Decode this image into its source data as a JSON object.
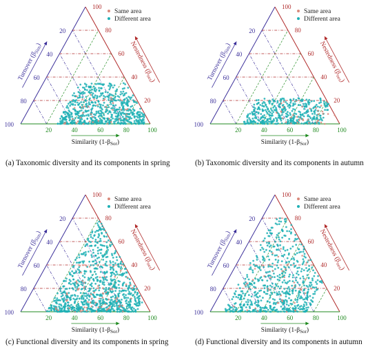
{
  "figure": {
    "sub_captions": [
      "(a) Taxonomic diversity and  its components in spring",
      "(b) Taxonomic diversity and  its components in autumn",
      "(c) Functional diversity and  its components in spring",
      "(d) Functional diversity and  its components in autumn"
    ]
  },
  "colors": {
    "same_area": "#d98a7c",
    "different_area": "#1fb0b5",
    "turnover_axis": "#3b2f9a",
    "nestedness_axis": "#b02a2a",
    "similarity_axis": "#1f8a1f"
  },
  "chart_data": [
    {
      "type": "scatter",
      "subtype": "ternary",
      "axes": {
        "turnover": {
          "label": "Turnover (βSim)",
          "label_main": "Turnover (β",
          "label_sub": "Sim",
          "label_end": ")",
          "ticks": [
            20,
            40,
            60,
            80,
            100
          ]
        },
        "nestedness": {
          "label": "Nestedness (βnes)",
          "label_main": "Nestedness (β",
          "label_sub": "nes",
          "label_end": ")",
          "ticks": [
            20,
            40,
            60,
            80,
            100
          ]
        },
        "similarity": {
          "label": "Similarity (1-βSor)",
          "label_main": "Similarity (1-β",
          "label_sub": "Sor",
          "label_end": ")",
          "ticks": [
            20,
            40,
            60,
            80,
            100
          ]
        }
      },
      "legend": {
        "position": "top-right",
        "entries": [
          "Same area",
          "Different area"
        ]
      },
      "grid": true,
      "distribution": {
        "different_area": {
          "count": 650,
          "similarity_range": [
            28,
            95
          ],
          "nestedness_range": [
            0,
            35
          ]
        },
        "same_area": {
          "count": 40,
          "similarity_range": [
            30,
            80
          ],
          "nestedness_range": [
            0,
            25
          ]
        }
      }
    },
    {
      "type": "scatter",
      "subtype": "ternary",
      "axes": {
        "turnover": {
          "label": "Turnover (βSim)",
          "label_main": "Turnover (β",
          "label_sub": "Sim",
          "label_end": ")",
          "ticks": [
            20,
            40,
            60,
            80,
            100
          ]
        },
        "nestedness": {
          "label": "Nestedness (βnes)",
          "label_main": "Nestedness (β",
          "label_sub": "nes",
          "label_end": ")",
          "ticks": [
            20,
            40,
            60,
            80,
            100
          ]
        },
        "similarity": {
          "label": "Similarity (1-βSor)",
          "label_main": "Similarity (1-β",
          "label_sub": "Sor",
          "label_end": ")",
          "ticks": [
            20,
            40,
            60,
            80,
            100
          ]
        }
      },
      "legend": {
        "position": "top-right",
        "entries": [
          "Same area",
          "Different area"
        ]
      },
      "grid": true,
      "distribution": {
        "different_area": {
          "count": 420,
          "similarity_range": [
            25,
            85
          ],
          "nestedness_range": [
            0,
            22
          ]
        },
        "same_area": {
          "count": 35,
          "similarity_range": [
            45,
            95
          ],
          "nestedness_range": [
            0,
            22
          ]
        }
      }
    },
    {
      "type": "scatter",
      "subtype": "ternary",
      "axes": {
        "turnover": {
          "label": "Turnover (βSim)",
          "label_main": "Turnover (β",
          "label_sub": "Sim",
          "label_end": ")",
          "ticks": [
            20,
            40,
            60,
            80,
            100
          ]
        },
        "nestedness": {
          "label": "Nestedness (βnes)",
          "label_main": "Nestedness (β",
          "label_sub": "nes",
          "label_end": ")",
          "ticks": [
            20,
            40,
            60,
            80,
            100
          ]
        },
        "similarity": {
          "label": "Similarity (1-βSor)",
          "label_main": "Similarity (1-β",
          "label_sub": "Sor",
          "label_end": ")",
          "ticks": [
            20,
            40,
            60,
            80,
            100
          ]
        }
      },
      "legend": {
        "position": "top-right",
        "entries": [
          "Same area",
          "Different area"
        ]
      },
      "grid": true,
      "distribution": {
        "different_area": {
          "count": 900,
          "similarity_range": [
            20,
            90
          ],
          "nestedness_range": [
            0,
            85
          ]
        },
        "same_area": {
          "count": 70,
          "similarity_range": [
            25,
            80
          ],
          "nestedness_range": [
            0,
            40
          ]
        }
      }
    },
    {
      "type": "scatter",
      "subtype": "ternary",
      "axes": {
        "turnover": {
          "label": "Turnover (βSim)",
          "label_main": "Turnover (β",
          "label_sub": "Sim",
          "label_end": ")",
          "ticks": [
            20,
            40,
            60,
            80,
            100
          ]
        },
        "nestedness": {
          "label": "Nestedness (βnes)",
          "label_main": "Nestedness (β",
          "label_sub": "nes",
          "label_end": ")",
          "ticks": [
            20,
            40,
            60,
            80,
            100
          ]
        },
        "similarity": {
          "label": "Similarity (1-βSor)",
          "label_main": "Similarity (1-β",
          "label_sub": "Sor",
          "label_end": ")",
          "ticks": [
            20,
            40,
            60,
            80,
            100
          ]
        }
      },
      "legend": {
        "position": "top-right",
        "entries": [
          "Same area",
          "Different area"
        ]
      },
      "grid": true,
      "distribution": {
        "different_area": {
          "count": 650,
          "similarity_range": [
            10,
            75
          ],
          "nestedness_range": [
            0,
            80
          ]
        },
        "same_area": {
          "count": 40,
          "similarity_range": [
            15,
            70
          ],
          "nestedness_range": [
            0,
            60
          ]
        }
      }
    }
  ]
}
